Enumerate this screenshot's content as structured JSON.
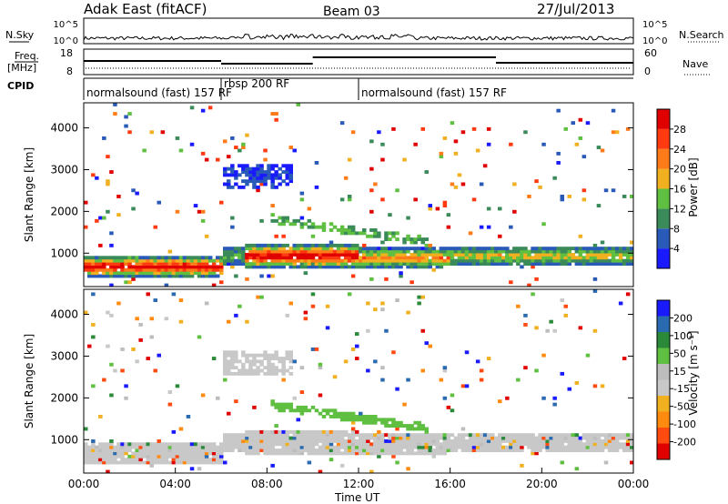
{
  "header": {
    "title": "Adak East (fitACF)",
    "beam": "Beam 03",
    "date": "27/Jul/2013"
  },
  "noise_panel": {
    "left_label": "N.Sky",
    "right_label": "N.Search",
    "tick_top": "10^5",
    "tick_bottom": "10^0"
  },
  "freq_panel": {
    "left_label_top": "Freq.",
    "left_label_bottom": "[MHz]",
    "left_tick_top": "18",
    "left_tick_bottom": "8",
    "right_label": "Nave",
    "right_tick_top": "60",
    "right_tick_bottom": "0",
    "freq_steps": [
      {
        "start_hour": 0.0,
        "end_hour": 6.0,
        "level": 0.45
      },
      {
        "start_hour": 6.0,
        "end_hour": 10.0,
        "level": 0.3
      },
      {
        "start_hour": 10.0,
        "end_hour": 18.0,
        "level": 0.65
      },
      {
        "start_hour": 18.0,
        "end_hour": 24.0,
        "level": 0.35
      }
    ]
  },
  "cpid_panel": {
    "label": "CPID",
    "segments": [
      {
        "text": "normalsound (fast) 157 RF",
        "start_hour": 0.0
      },
      {
        "text": "rbsp 200 RF",
        "start_hour": 6.0
      },
      {
        "text": "normalsound (fast) 157 RF",
        "start_hour": 12.0
      }
    ]
  },
  "colors": {
    "power": [
      "#1a1aff",
      "#2a5ab8",
      "#3b8a5a",
      "#5fbf40",
      "#f0b020",
      "#ff7a18",
      "#ff3a10",
      "#e00000"
    ],
    "velocity": [
      "#e00000",
      "#ff4a10",
      "#ff8a10",
      "#f0b020",
      "#c8c8c8",
      "#bdbdbd",
      "#5fbf40",
      "#2a8a3a",
      "#2a6ab0",
      "#1a1aff"
    ]
  },
  "chart_data": [
    {
      "type": "heatmap",
      "panel": "power",
      "ylabel": "Slant Range [km]",
      "y_ticks": [
        "1000",
        "2000",
        "3000",
        "4000"
      ],
      "ylim": [
        200,
        4600
      ],
      "xlim_hours": [
        0,
        24
      ],
      "colorbar_label": "Power [dB]",
      "colorbar_ticks": [
        "4",
        "8",
        "12",
        "16",
        "20",
        "24",
        "28"
      ],
      "colorbar_range": [
        0,
        32
      ]
    },
    {
      "type": "heatmap",
      "panel": "velocity",
      "ylabel": "Slant Range [km]",
      "y_ticks": [
        "1000",
        "2000",
        "3000",
        "4000"
      ],
      "ylim": [
        200,
        4600
      ],
      "xlim_hours": [
        0,
        24
      ],
      "colorbar_label": "Velocity [m s⁻¹]",
      "colorbar_ticks": [
        "-200",
        "-100",
        "-50",
        "-15",
        "15",
        "50",
        "100",
        "200"
      ],
      "colorbar_range": [
        -250,
        250
      ]
    }
  ],
  "x_axis": {
    "label": "Time UT",
    "ticks": [
      "00:00",
      "04:00",
      "08:00",
      "12:00",
      "16:00",
      "20:00",
      "00:00"
    ]
  }
}
